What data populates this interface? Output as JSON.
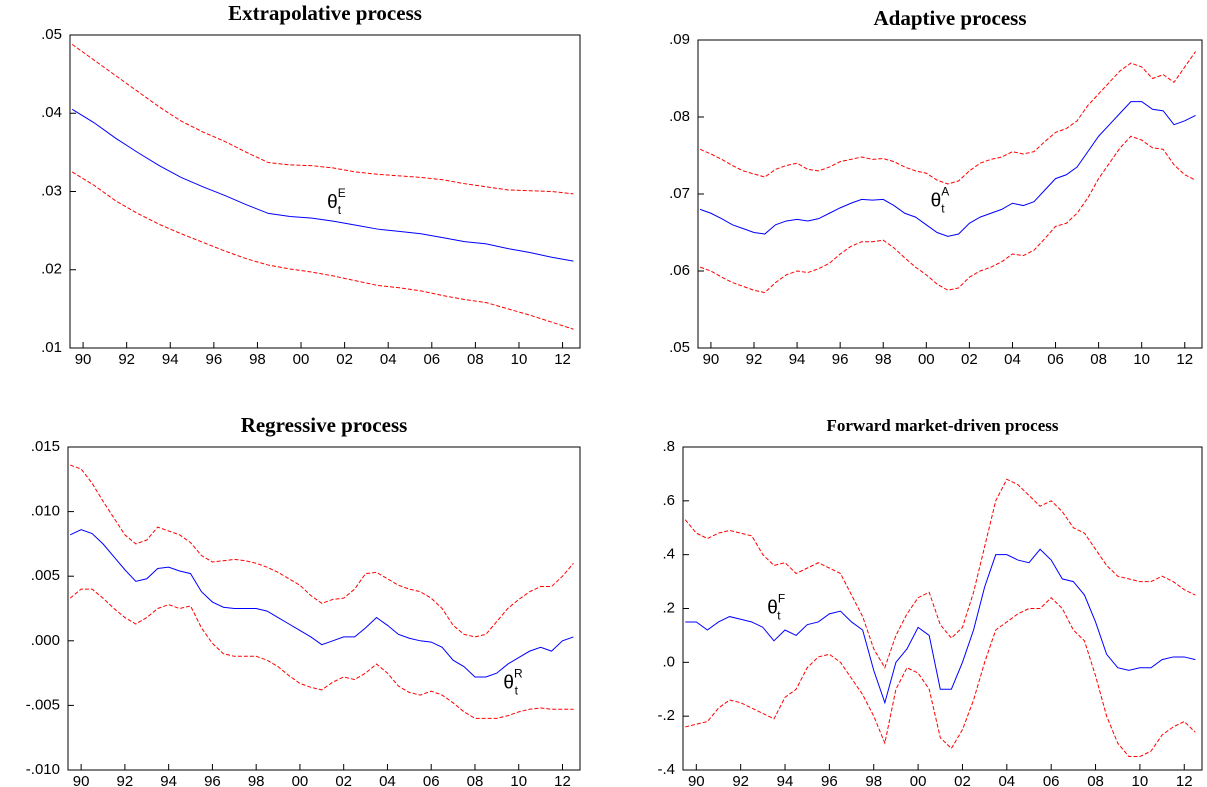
{
  "chart_data": [
    {
      "type": "line",
      "title": "Extrapolative process",
      "annotation": {
        "symbol": "θ",
        "sub": "t",
        "sup": "E"
      },
      "x": [
        1989.5,
        1990.5,
        1991.5,
        1992.5,
        1993.5,
        1994.5,
        1995.5,
        1996.5,
        1997.5,
        1998.5,
        1999.5,
        2000.5,
        2001.5,
        2002.5,
        2003.5,
        2004.5,
        2005.5,
        2006.5,
        2007.5,
        2008.5,
        2009.5,
        2010.5,
        2011.5,
        2012.5
      ],
      "series": [
        {
          "color": "#0000ff",
          "dashed": false,
          "values": [
            0.0405,
            0.0388,
            0.0368,
            0.035,
            0.0333,
            0.0318,
            0.0306,
            0.0295,
            0.0283,
            0.0272,
            0.0268,
            0.0266,
            0.0262,
            0.0257,
            0.0252,
            0.0249,
            0.0246,
            0.0241,
            0.0236,
            0.0233,
            0.0227,
            0.0222,
            0.0216,
            0.0211
          ]
        },
        {
          "color": "#ff0000",
          "dashed": true,
          "values": [
            0.0488,
            0.0468,
            0.0448,
            0.0428,
            0.0408,
            0.039,
            0.0376,
            0.0364,
            0.035,
            0.0337,
            0.0334,
            0.0333,
            0.033,
            0.0325,
            0.0322,
            0.032,
            0.0318,
            0.0315,
            0.031,
            0.0306,
            0.0302,
            0.0301,
            0.03,
            0.0297
          ]
        },
        {
          "color": "#ff0000",
          "dashed": true,
          "values": [
            0.0325,
            0.0308,
            0.0288,
            0.0272,
            0.0258,
            0.0246,
            0.0235,
            0.0224,
            0.0214,
            0.0206,
            0.0201,
            0.0197,
            0.0192,
            0.0186,
            0.018,
            0.0177,
            0.0173,
            0.0167,
            0.0162,
            0.0158,
            0.015,
            0.0142,
            0.0133,
            0.0124
          ]
        }
      ],
      "xlim": [
        1989.4,
        2012.8
      ],
      "xticks": [
        {
          "value": 1990,
          "label": "90"
        },
        {
          "value": 1992,
          "label": "92"
        },
        {
          "value": 1994,
          "label": "94"
        },
        {
          "value": 1996,
          "label": "96"
        },
        {
          "value": 1998,
          "label": "98"
        },
        {
          "value": 2000,
          "label": "00"
        },
        {
          "value": 2002,
          "label": "02"
        },
        {
          "value": 2004,
          "label": "04"
        },
        {
          "value": 2006,
          "label": "06"
        },
        {
          "value": 2008,
          "label": "08"
        },
        {
          "value": 2010,
          "label": "10"
        },
        {
          "value": 2012,
          "label": "12"
        }
      ],
      "ylim": [
        0.01,
        0.05
      ],
      "yticks": [
        {
          "value": 0.01,
          "label": ".01"
        },
        {
          "value": 0.02,
          "label": ".02"
        },
        {
          "value": 0.03,
          "label": ".03"
        },
        {
          "value": 0.04,
          "label": ".04"
        },
        {
          "value": 0.05,
          "label": ".05"
        }
      ]
    },
    {
      "type": "line",
      "title": "Adaptive process",
      "annotation": {
        "symbol": "θ",
        "sub": "t",
        "sup": "A"
      },
      "x": [
        1989.5,
        1990,
        1990.5,
        1991,
        1991.5,
        1992,
        1992.5,
        1993,
        1993.5,
        1994,
        1994.5,
        1995,
        1995.5,
        1996,
        1996.5,
        1997,
        1997.5,
        1998,
        1998.5,
        1999,
        1999.5,
        2000,
        2000.5,
        2001,
        2001.5,
        2002,
        2002.5,
        2003,
        2003.5,
        2004,
        2004.5,
        2005,
        2005.5,
        2006,
        2006.5,
        2007,
        2007.5,
        2008,
        2008.5,
        2009,
        2009.5,
        2010,
        2010.5,
        2011,
        2011.5,
        2012,
        2012.5
      ],
      "series": [
        {
          "color": "#0000ff",
          "dashed": false,
          "values": [
            0.068,
            0.0675,
            0.0668,
            0.066,
            0.0655,
            0.065,
            0.0648,
            0.066,
            0.0665,
            0.0667,
            0.0665,
            0.0668,
            0.0675,
            0.0682,
            0.0688,
            0.0693,
            0.0692,
            0.0693,
            0.0685,
            0.0675,
            0.067,
            0.066,
            0.065,
            0.0645,
            0.0648,
            0.0662,
            0.067,
            0.0675,
            0.068,
            0.0688,
            0.0685,
            0.069,
            0.0705,
            0.072,
            0.0725,
            0.0735,
            0.0755,
            0.0775,
            0.079,
            0.0805,
            0.082,
            0.082,
            0.081,
            0.0808,
            0.079,
            0.0795,
            0.0802
          ]
        },
        {
          "color": "#ff0000",
          "dashed": true,
          "values": [
            0.0758,
            0.0752,
            0.0745,
            0.0737,
            0.073,
            0.0726,
            0.0722,
            0.0732,
            0.0737,
            0.074,
            0.0732,
            0.073,
            0.0735,
            0.0742,
            0.0745,
            0.0748,
            0.0745,
            0.0746,
            0.0742,
            0.0735,
            0.073,
            0.0727,
            0.0718,
            0.0713,
            0.0717,
            0.073,
            0.074,
            0.0745,
            0.0748,
            0.0755,
            0.0752,
            0.0755,
            0.0768,
            0.078,
            0.0785,
            0.0795,
            0.0815,
            0.083,
            0.0845,
            0.086,
            0.087,
            0.0865,
            0.085,
            0.0855,
            0.0845,
            0.0865,
            0.0885
          ]
        },
        {
          "color": "#ff0000",
          "dashed": true,
          "values": [
            0.0605,
            0.06,
            0.0592,
            0.0585,
            0.058,
            0.0575,
            0.0572,
            0.0585,
            0.0595,
            0.06,
            0.0598,
            0.0603,
            0.061,
            0.0622,
            0.0632,
            0.0638,
            0.0638,
            0.064,
            0.063,
            0.0617,
            0.0605,
            0.0595,
            0.0583,
            0.0575,
            0.0578,
            0.0592,
            0.06,
            0.0605,
            0.0612,
            0.0622,
            0.062,
            0.0627,
            0.0642,
            0.0658,
            0.0662,
            0.0675,
            0.0695,
            0.072,
            0.074,
            0.076,
            0.0775,
            0.077,
            0.076,
            0.0758,
            0.0738,
            0.0725,
            0.0718
          ]
        }
      ],
      "xlim": [
        1989.4,
        2012.8
      ],
      "xticks": [
        {
          "value": 1990,
          "label": "90"
        },
        {
          "value": 1992,
          "label": "92"
        },
        {
          "value": 1994,
          "label": "94"
        },
        {
          "value": 1996,
          "label": "96"
        },
        {
          "value": 1998,
          "label": "98"
        },
        {
          "value": 2000,
          "label": "00"
        },
        {
          "value": 2002,
          "label": "02"
        },
        {
          "value": 2004,
          "label": "04"
        },
        {
          "value": 2006,
          "label": "06"
        },
        {
          "value": 2008,
          "label": "08"
        },
        {
          "value": 2010,
          "label": "10"
        },
        {
          "value": 2012,
          "label": "12"
        }
      ],
      "ylim": [
        0.05,
        0.09
      ],
      "yticks": [
        {
          "value": 0.05,
          "label": ".05"
        },
        {
          "value": 0.06,
          "label": ".06"
        },
        {
          "value": 0.07,
          "label": ".07"
        },
        {
          "value": 0.08,
          "label": ".08"
        },
        {
          "value": 0.09,
          "label": ".09"
        }
      ]
    },
    {
      "type": "line",
      "title": "Regressive process",
      "annotation": {
        "symbol": "θ",
        "sub": "t",
        "sup": "R"
      },
      "x": [
        1989.5,
        1990,
        1990.5,
        1991,
        1991.5,
        1992,
        1992.5,
        1993,
        1993.5,
        1994,
        1994.5,
        1995,
        1995.5,
        1996,
        1996.5,
        1997,
        1997.5,
        1998,
        1998.5,
        1999,
        1999.5,
        2000,
        2000.5,
        2001,
        2001.5,
        2002,
        2002.5,
        2003,
        2003.5,
        2004,
        2004.5,
        2005,
        2005.5,
        2006,
        2006.5,
        2007,
        2007.5,
        2008,
        2008.5,
        2009,
        2009.5,
        2010,
        2010.5,
        2011,
        2011.5,
        2012,
        2012.5
      ],
      "series": [
        {
          "color": "#0000ff",
          "dashed": false,
          "values": [
            0.0082,
            0.0086,
            0.0083,
            0.0075,
            0.0065,
            0.0055,
            0.0046,
            0.0048,
            0.0056,
            0.0057,
            0.0054,
            0.0052,
            0.0038,
            0.003,
            0.0026,
            0.0025,
            0.0025,
            0.0025,
            0.0023,
            0.0018,
            0.0013,
            0.0008,
            0.0003,
            -0.0003,
            0.0,
            0.0003,
            0.0003,
            0.001,
            0.0018,
            0.0012,
            0.0005,
            0.0002,
            0.0,
            -0.0001,
            -0.0005,
            -0.0015,
            -0.002,
            -0.0028,
            -0.0028,
            -0.0025,
            -0.0018,
            -0.0013,
            -0.0008,
            -0.0005,
            -0.0008,
            0.0,
            0.0003
          ]
        },
        {
          "color": "#ff0000",
          "dashed": true,
          "values": [
            0.0136,
            0.0133,
            0.0122,
            0.0108,
            0.0095,
            0.0082,
            0.0075,
            0.0078,
            0.0088,
            0.0085,
            0.0082,
            0.0076,
            0.0066,
            0.0061,
            0.0062,
            0.0063,
            0.0062,
            0.006,
            0.0057,
            0.0053,
            0.0048,
            0.0043,
            0.0035,
            0.0029,
            0.0032,
            0.0033,
            0.004,
            0.0052,
            0.0053,
            0.0048,
            0.0043,
            0.004,
            0.0038,
            0.0033,
            0.0025,
            0.0012,
            0.0005,
            0.0003,
            0.0005,
            0.0015,
            0.0025,
            0.0032,
            0.0038,
            0.0042,
            0.0042,
            0.005,
            0.006
          ]
        },
        {
          "color": "#ff0000",
          "dashed": true,
          "values": [
            0.0033,
            0.004,
            0.004,
            0.0033,
            0.0025,
            0.0018,
            0.0013,
            0.0018,
            0.0025,
            0.0028,
            0.0025,
            0.0027,
            0.001,
            -0.0002,
            -0.001,
            -0.0012,
            -0.0012,
            -0.0012,
            -0.0015,
            -0.002,
            -0.0027,
            -0.0033,
            -0.0036,
            -0.0038,
            -0.0032,
            -0.0028,
            -0.003,
            -0.0025,
            -0.0018,
            -0.0025,
            -0.0035,
            -0.004,
            -0.0042,
            -0.0039,
            -0.0042,
            -0.0048,
            -0.0055,
            -0.006,
            -0.006,
            -0.006,
            -0.0058,
            -0.0055,
            -0.0053,
            -0.0052,
            -0.0053,
            -0.0053,
            -0.0053
          ]
        }
      ],
      "xlim": [
        1989.4,
        2012.8
      ],
      "xticks": [
        {
          "value": 1990,
          "label": "90"
        },
        {
          "value": 1992,
          "label": "92"
        },
        {
          "value": 1994,
          "label": "94"
        },
        {
          "value": 1996,
          "label": "96"
        },
        {
          "value": 1998,
          "label": "98"
        },
        {
          "value": 2000,
          "label": "00"
        },
        {
          "value": 2002,
          "label": "02"
        },
        {
          "value": 2004,
          "label": "04"
        },
        {
          "value": 2006,
          "label": "06"
        },
        {
          "value": 2008,
          "label": "08"
        },
        {
          "value": 2010,
          "label": "10"
        },
        {
          "value": 2012,
          "label": "12"
        }
      ],
      "ylim": [
        -0.01,
        0.015
      ],
      "yticks": [
        {
          "value": -0.01,
          "label": "-.010"
        },
        {
          "value": -0.005,
          "label": "-.005"
        },
        {
          "value": 0,
          "label": ".000"
        },
        {
          "value": 0.005,
          "label": ".005"
        },
        {
          "value": 0.01,
          "label": ".010"
        },
        {
          "value": 0.015,
          "label": ".015"
        }
      ]
    },
    {
      "type": "line",
      "title": "Forward market-driven process",
      "annotation": {
        "symbol": "θ",
        "sub": "t",
        "sup": "F"
      },
      "x": [
        1989.5,
        1990,
        1990.5,
        1991,
        1991.5,
        1992,
        1992.5,
        1993,
        1993.5,
        1994,
        1994.5,
        1995,
        1995.5,
        1996,
        1996.5,
        1997,
        1997.5,
        1998,
        1998.5,
        1999,
        1999.5,
        2000,
        2000.5,
        2001,
        2001.5,
        2002,
        2002.5,
        2003,
        2003.5,
        2004,
        2004.5,
        2005,
        2005.5,
        2006,
        2006.5,
        2007,
        2007.5,
        2008,
        2008.5,
        2009,
        2009.5,
        2010,
        2010.5,
        2011,
        2011.5,
        2012,
        2012.5
      ],
      "series": [
        {
          "color": "#0000ff",
          "dashed": false,
          "values": [
            0.15,
            0.15,
            0.12,
            0.15,
            0.17,
            0.16,
            0.15,
            0.13,
            0.08,
            0.12,
            0.1,
            0.14,
            0.15,
            0.18,
            0.19,
            0.15,
            0.12,
            -0.03,
            -0.15,
            0.0,
            0.05,
            0.13,
            0.1,
            -0.1,
            -0.1,
            0.0,
            0.12,
            0.28,
            0.4,
            0.4,
            0.38,
            0.37,
            0.42,
            0.38,
            0.31,
            0.3,
            0.25,
            0.15,
            0.03,
            -0.02,
            -0.03,
            -0.02,
            -0.02,
            0.01,
            0.02,
            0.02,
            0.01
          ]
        },
        {
          "color": "#ff0000",
          "dashed": true,
          "values": [
            0.53,
            0.48,
            0.46,
            0.48,
            0.49,
            0.48,
            0.47,
            0.4,
            0.36,
            0.37,
            0.33,
            0.35,
            0.37,
            0.35,
            0.33,
            0.25,
            0.17,
            0.05,
            -0.02,
            0.1,
            0.18,
            0.24,
            0.26,
            0.14,
            0.09,
            0.13,
            0.26,
            0.43,
            0.6,
            0.68,
            0.66,
            0.62,
            0.58,
            0.6,
            0.56,
            0.5,
            0.48,
            0.42,
            0.36,
            0.32,
            0.31,
            0.3,
            0.3,
            0.32,
            0.3,
            0.27,
            0.25
          ]
        },
        {
          "color": "#ff0000",
          "dashed": true,
          "values": [
            -0.24,
            -0.23,
            -0.22,
            -0.17,
            -0.14,
            -0.15,
            -0.17,
            -0.19,
            -0.21,
            -0.13,
            -0.1,
            -0.02,
            0.02,
            0.03,
            0.0,
            -0.06,
            -0.12,
            -0.2,
            -0.3,
            -0.1,
            -0.02,
            -0.04,
            -0.1,
            -0.28,
            -0.32,
            -0.25,
            -0.14,
            0.0,
            0.12,
            0.15,
            0.18,
            0.2,
            0.2,
            0.24,
            0.2,
            0.12,
            0.08,
            -0.05,
            -0.2,
            -0.3,
            -0.35,
            -0.35,
            -0.33,
            -0.27,
            -0.24,
            -0.22,
            -0.26
          ]
        }
      ],
      "xlim": [
        1989.4,
        2012.8
      ],
      "xticks": [
        {
          "value": 1990,
          "label": "90"
        },
        {
          "value": 1992,
          "label": "92"
        },
        {
          "value": 1994,
          "label": "94"
        },
        {
          "value": 1996,
          "label": "96"
        },
        {
          "value": 1998,
          "label": "98"
        },
        {
          "value": 2000,
          "label": "00"
        },
        {
          "value": 2002,
          "label": "02"
        },
        {
          "value": 2004,
          "label": "04"
        },
        {
          "value": 2006,
          "label": "06"
        },
        {
          "value": 2008,
          "label": "08"
        },
        {
          "value": 2010,
          "label": "10"
        },
        {
          "value": 2012,
          "label": "12"
        }
      ],
      "ylim": [
        -0.4,
        0.8
      ],
      "yticks": [
        {
          "value": -0.4,
          "label": "-.4"
        },
        {
          "value": -0.2,
          "label": "-.2"
        },
        {
          "value": 0,
          "label": ".0"
        },
        {
          "value": 0.2,
          "label": ".2"
        },
        {
          "value": 0.4,
          "label": ".4"
        },
        {
          "value": 0.6,
          "label": ".6"
        },
        {
          "value": 0.8,
          "label": ".8"
        }
      ]
    }
  ]
}
